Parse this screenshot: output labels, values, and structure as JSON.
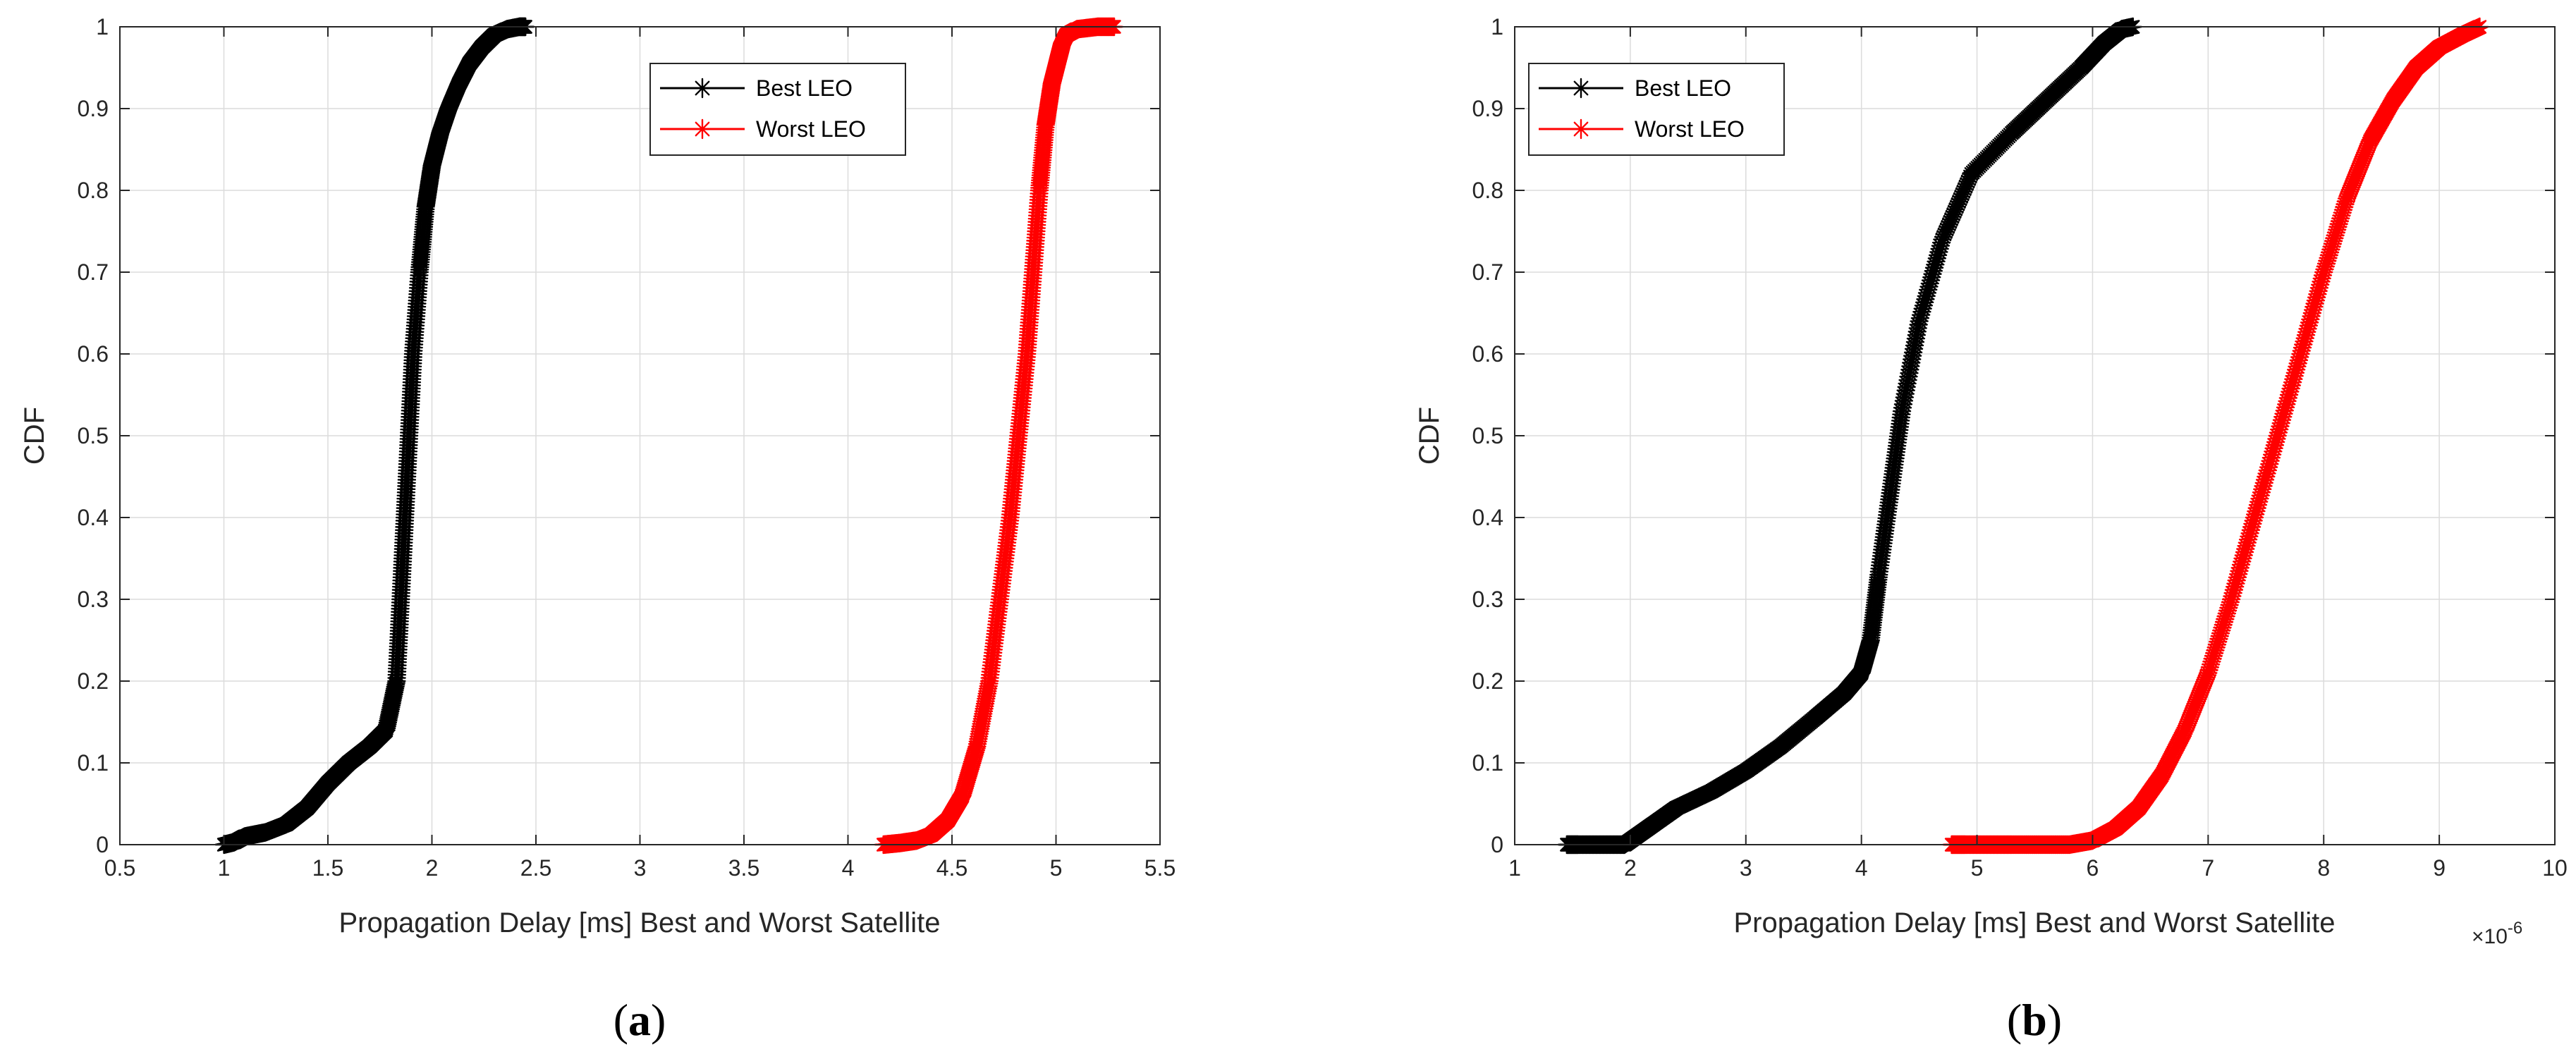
{
  "chart_data": [
    {
      "type": "line",
      "panel_label": "a",
      "xlabel": "Propagation Delay [ms] Best and Worst Satellite",
      "ylabel": "CDF",
      "xlim": [
        0.5,
        5.5
      ],
      "ylim": [
        0,
        1
      ],
      "xticks": [
        0.5,
        1,
        1.5,
        2,
        2.5,
        3,
        3.5,
        4,
        4.5,
        5,
        5.5
      ],
      "xtick_labels": [
        "0.5",
        "1",
        "1.5",
        "2",
        "2.5",
        "3",
        "3.5",
        "4",
        "4.5",
        "5",
        "5.5"
      ],
      "yticks": [
        0,
        0.1,
        0.2,
        0.3,
        0.4,
        0.5,
        0.6,
        0.7,
        0.8,
        0.9,
        1
      ],
      "ytick_labels": [
        "0",
        "0.1",
        "0.2",
        "0.3",
        "0.4",
        "0.5",
        "0.6",
        "0.7",
        "0.8",
        "0.9",
        "1"
      ],
      "x_exponent_label": "",
      "grid": true,
      "legend_position": "top-right",
      "series": [
        {
          "name": "Best LEO",
          "color": "#000000",
          "marker": "asterisk",
          "x": [
            1.0,
            1.05,
            1.1,
            1.2,
            1.3,
            1.4,
            1.5,
            1.6,
            1.7,
            1.78,
            1.83,
            1.85,
            1.87,
            1.89,
            1.91,
            1.94,
            1.97,
            2.0,
            2.04,
            2.08,
            2.13,
            2.18,
            2.24,
            2.3,
            2.36,
            2.42,
            2.45
          ],
          "y": [
            0.0,
            0.003,
            0.01,
            0.015,
            0.025,
            0.045,
            0.075,
            0.1,
            0.12,
            0.14,
            0.2,
            0.3,
            0.4,
            0.5,
            0.6,
            0.7,
            0.78,
            0.83,
            0.87,
            0.9,
            0.93,
            0.955,
            0.975,
            0.99,
            0.997,
            1.0,
            1.0
          ]
        },
        {
          "name": "Worst LEO",
          "color": "#ff0000",
          "marker": "asterisk",
          "x": [
            4.17,
            4.25,
            4.33,
            4.4,
            4.48,
            4.55,
            4.62,
            4.68,
            4.73,
            4.78,
            4.82,
            4.86,
            4.89,
            4.92,
            4.95,
            4.98,
            5.01,
            5.03,
            5.05,
            5.1,
            5.2,
            5.28
          ],
          "y": [
            0.0,
            0.002,
            0.005,
            0.012,
            0.03,
            0.06,
            0.12,
            0.2,
            0.3,
            0.4,
            0.5,
            0.6,
            0.7,
            0.8,
            0.88,
            0.93,
            0.96,
            0.98,
            0.99,
            0.997,
            1.0,
            1.0
          ]
        }
      ]
    },
    {
      "type": "line",
      "panel_label": "b",
      "xlabel": "Propagation Delay [ms] Best and Worst Satellite",
      "ylabel": "CDF",
      "xlim": [
        1,
        10
      ],
      "ylim": [
        0,
        1
      ],
      "xticks": [
        1,
        2,
        3,
        4,
        5,
        6,
        7,
        8,
        9,
        10
      ],
      "xtick_labels": [
        "1",
        "2",
        "3",
        "4",
        "5",
        "6",
        "7",
        "8",
        "9",
        "10"
      ],
      "yticks": [
        0,
        0.1,
        0.2,
        0.3,
        0.4,
        0.5,
        0.6,
        0.7,
        0.8,
        0.9,
        1
      ],
      "ytick_labels": [
        "0",
        "0.1",
        "0.2",
        "0.3",
        "0.4",
        "0.5",
        "0.6",
        "0.7",
        "0.8",
        "0.9",
        "1"
      ],
      "x_exponent_label": "×10",
      "x_exponent_power": "-6",
      "grid": true,
      "legend_position": "top-left",
      "series": [
        {
          "name": "Best LEO",
          "color": "#000000",
          "marker": "asterisk",
          "x": [
            1.45,
            1.55,
            1.75,
            1.95,
            2.05,
            2.2,
            2.4,
            2.7,
            3.0,
            3.3,
            3.6,
            3.85,
            4.0,
            4.08,
            4.15,
            4.25,
            4.35,
            4.5,
            4.7,
            4.95,
            5.3,
            5.6,
            5.9,
            6.1,
            6.25,
            6.35
          ],
          "y": [
            0.0,
            0.0,
            0.0,
            0.0,
            0.01,
            0.025,
            0.045,
            0.065,
            0.09,
            0.12,
            0.155,
            0.185,
            0.21,
            0.25,
            0.33,
            0.43,
            0.53,
            0.64,
            0.74,
            0.82,
            0.87,
            0.91,
            0.95,
            0.98,
            0.997,
            1.0
          ]
        },
        {
          "name": "Worst LEO",
          "color": "#ff0000",
          "marker": "asterisk",
          "x": [
            4.78,
            4.9,
            5.1,
            5.3,
            5.55,
            5.8,
            6.0,
            6.2,
            6.4,
            6.6,
            6.8,
            7.0,
            7.2,
            7.4,
            7.6,
            7.8,
            8.0,
            8.2,
            8.4,
            8.6,
            8.8,
            9.0,
            9.2,
            9.35
          ],
          "y": [
            0.0,
            0.0,
            0.0,
            0.0,
            0.0,
            0.0,
            0.005,
            0.02,
            0.045,
            0.085,
            0.14,
            0.21,
            0.3,
            0.4,
            0.5,
            0.6,
            0.7,
            0.79,
            0.86,
            0.91,
            0.95,
            0.975,
            0.99,
            1.0
          ]
        }
      ]
    }
  ]
}
